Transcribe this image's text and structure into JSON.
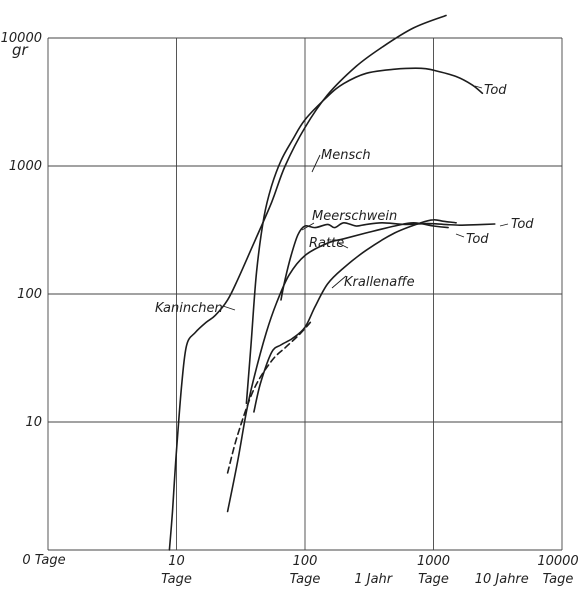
{
  "chart_data": {
    "type": "line",
    "x_scale": "log",
    "y_scale": "log",
    "xlim": [
      1,
      10000
    ],
    "ylim": [
      1,
      10000
    ],
    "grid": true,
    "y_unit_label": "gr",
    "y_ticks": [
      {
        "value": 10000,
        "label": "10000"
      },
      {
        "value": 1000,
        "label": "1000"
      },
      {
        "value": 100,
        "label": "100"
      },
      {
        "value": 10,
        "label": "10"
      }
    ],
    "x_ticks": [
      {
        "value": 1,
        "label": "0 Tage",
        "label2": ""
      },
      {
        "value": 10,
        "label": "10",
        "label2": "Tage"
      },
      {
        "value": 100,
        "label": "100",
        "label2": "Tage"
      },
      {
        "value": 1000,
        "label": "1000",
        "label2": "Tage"
      },
      {
        "value": 10000,
        "label": "10000",
        "label2": "Tage"
      }
    ],
    "x_annotations": [
      {
        "value": 365,
        "label": "1 Jahr"
      },
      {
        "value": 3650,
        "label": "10 Jahre"
      }
    ],
    "series": [
      {
        "name": "Mensch",
        "style": "solid",
        "points": [
          [
            35,
            14
          ],
          [
            38,
            40
          ],
          [
            42,
            150
          ],
          [
            48,
            400
          ],
          [
            55,
            700
          ],
          [
            65,
            1100
          ],
          [
            80,
            1600
          ],
          [
            100,
            2300
          ],
          [
            150,
            3500
          ],
          [
            200,
            4400
          ],
          [
            300,
            5300
          ],
          [
            500,
            5700
          ],
          [
            800,
            5800
          ],
          [
            1000,
            5600
          ],
          [
            1500,
            5000
          ],
          [
            2000,
            4300
          ],
          [
            2400,
            3700
          ]
        ]
      },
      {
        "name": "Kaninchen",
        "style": "solid",
        "points": [
          [
            8.8,
            1
          ],
          [
            9.3,
            2
          ],
          [
            10,
            6
          ],
          [
            11,
            20
          ],
          [
            12,
            40
          ],
          [
            14,
            50
          ],
          [
            17,
            60
          ],
          [
            20,
            68
          ],
          [
            25,
            90
          ],
          [
            30,
            130
          ],
          [
            40,
            250
          ],
          [
            55,
            520
          ],
          [
            70,
            1000
          ],
          [
            100,
            2000
          ],
          [
            150,
            3600
          ],
          [
            250,
            6000
          ],
          [
            400,
            8500
          ],
          [
            700,
            12000
          ],
          [
            1250,
            15000
          ]
        ]
      },
      {
        "name": "Meerschwein",
        "style": "solid",
        "points": [
          [
            65,
            90
          ],
          [
            70,
            130
          ],
          [
            78,
            200
          ],
          [
            88,
            290
          ],
          [
            100,
            340
          ],
          [
            120,
            330
          ],
          [
            150,
            350
          ],
          [
            170,
            330
          ],
          [
            200,
            360
          ],
          [
            250,
            340
          ],
          [
            300,
            350
          ],
          [
            400,
            360
          ],
          [
            600,
            350
          ],
          [
            900,
            355
          ],
          [
            1200,
            350
          ],
          [
            1600,
            345
          ],
          [
            2200,
            348
          ],
          [
            3000,
            352
          ]
        ]
      },
      {
        "name": "Ratte",
        "style": "solid",
        "points": [
          [
            25,
            2
          ],
          [
            30,
            5
          ],
          [
            35,
            12
          ],
          [
            40,
            22
          ],
          [
            50,
            50
          ],
          [
            60,
            85
          ],
          [
            75,
            140
          ],
          [
            100,
            200
          ],
          [
            150,
            250
          ],
          [
            200,
            270
          ],
          [
            300,
            300
          ],
          [
            500,
            340
          ],
          [
            700,
            360
          ],
          [
            1000,
            340
          ],
          [
            1300,
            330
          ]
        ]
      },
      {
        "name": "Krallenaffe",
        "style": "solid",
        "points": [
          [
            40,
            12
          ],
          [
            45,
            20
          ],
          [
            55,
            35
          ],
          [
            65,
            40
          ],
          [
            80,
            45
          ],
          [
            100,
            55
          ],
          [
            120,
            80
          ],
          [
            150,
            120
          ],
          [
            200,
            160
          ],
          [
            300,
            220
          ],
          [
            500,
            300
          ],
          [
            800,
            360
          ],
          [
            1000,
            380
          ],
          [
            1200,
            370
          ],
          [
            1500,
            360
          ]
        ]
      },
      {
        "name": "",
        "style": "dashed",
        "points": [
          [
            25,
            4
          ],
          [
            30,
            8
          ],
          [
            40,
            18
          ],
          [
            55,
            30
          ],
          [
            70,
            38
          ],
          [
            90,
            48
          ],
          [
            110,
            60
          ]
        ]
      }
    ],
    "annotations": [
      {
        "label": "Mensch"
      },
      {
        "label": "Kaninchen"
      },
      {
        "label": "Meerschwein"
      },
      {
        "label": "Ratte"
      },
      {
        "label": "Krallenaffe"
      },
      {
        "label": "Tod"
      },
      {
        "label": "Tod"
      },
      {
        "label": "Tod"
      }
    ]
  }
}
